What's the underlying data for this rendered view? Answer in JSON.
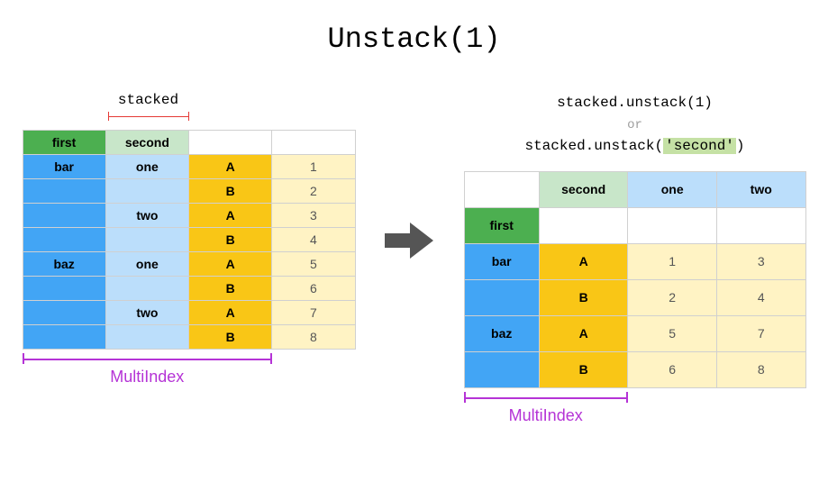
{
  "title": "Unstack(1)",
  "stacked_label": "stacked",
  "code_line1": "stacked.unstack(1)",
  "code_or": "or",
  "code_line2_prefix": "stacked.unstack(",
  "code_line2_hl": "'second'",
  "code_line2_suffix": ")",
  "multiindex_label": "MultiIndex",
  "colors": {
    "green_header": "#4caf50",
    "green_light": "#c8e6c9",
    "blue_header": "#42a5f5",
    "blue_light": "#bbdefb",
    "yellow_header": "#f9c616",
    "yellow_light": "#fff3c4",
    "border": "#d0d0d0",
    "arrow": "#555555",
    "red": "#e53935",
    "purple": "#b533d6",
    "grey_text": "#555555",
    "white": "#ffffff",
    "highlight": "#c5e1a5"
  },
  "left_table": {
    "col_widths_pct": [
      25,
      25,
      25,
      25
    ],
    "header": [
      {
        "text": "first",
        "bg": "green_header",
        "bold": true
      },
      {
        "text": "second",
        "bg": "green_light",
        "bold": true
      },
      {
        "text": "",
        "bg": "white",
        "bold": false
      },
      {
        "text": "",
        "bg": "white",
        "bold": false
      }
    ],
    "rows": [
      [
        {
          "text": "bar",
          "bg": "blue_header",
          "bold": true
        },
        {
          "text": "one",
          "bg": "blue_light",
          "bold": true
        },
        {
          "text": "A",
          "bg": "yellow_header",
          "bold": true
        },
        {
          "text": "1",
          "bg": "yellow_light",
          "bold": false
        }
      ],
      [
        {
          "text": "",
          "bg": "blue_header",
          "bold": false
        },
        {
          "text": "",
          "bg": "blue_light",
          "bold": false
        },
        {
          "text": "B",
          "bg": "yellow_header",
          "bold": true
        },
        {
          "text": "2",
          "bg": "yellow_light",
          "bold": false
        }
      ],
      [
        {
          "text": "",
          "bg": "blue_header",
          "bold": false
        },
        {
          "text": "two",
          "bg": "blue_light",
          "bold": true
        },
        {
          "text": "A",
          "bg": "yellow_header",
          "bold": true
        },
        {
          "text": "3",
          "bg": "yellow_light",
          "bold": false
        }
      ],
      [
        {
          "text": "",
          "bg": "blue_header",
          "bold": false
        },
        {
          "text": "",
          "bg": "blue_light",
          "bold": false
        },
        {
          "text": "B",
          "bg": "yellow_header",
          "bold": true
        },
        {
          "text": "4",
          "bg": "yellow_light",
          "bold": false
        }
      ],
      [
        {
          "text": "baz",
          "bg": "blue_header",
          "bold": true
        },
        {
          "text": "one",
          "bg": "blue_light",
          "bold": true
        },
        {
          "text": "A",
          "bg": "yellow_header",
          "bold": true
        },
        {
          "text": "5",
          "bg": "yellow_light",
          "bold": false
        }
      ],
      [
        {
          "text": "",
          "bg": "blue_header",
          "bold": false
        },
        {
          "text": "",
          "bg": "blue_light",
          "bold": false
        },
        {
          "text": "B",
          "bg": "yellow_header",
          "bold": true
        },
        {
          "text": "6",
          "bg": "yellow_light",
          "bold": false
        }
      ],
      [
        {
          "text": "",
          "bg": "blue_header",
          "bold": false
        },
        {
          "text": "two",
          "bg": "blue_light",
          "bold": true
        },
        {
          "text": "A",
          "bg": "yellow_header",
          "bold": true
        },
        {
          "text": "7",
          "bg": "yellow_light",
          "bold": false
        }
      ],
      [
        {
          "text": "",
          "bg": "blue_header",
          "bold": false
        },
        {
          "text": "",
          "bg": "blue_light",
          "bold": false
        },
        {
          "text": "B",
          "bg": "yellow_header",
          "bold": true
        },
        {
          "text": "8",
          "bg": "yellow_light",
          "bold": false
        }
      ]
    ],
    "mi_bracket_width_cols": 3
  },
  "right_table": {
    "col_widths_pct": [
      22,
      26,
      26,
      26
    ],
    "header1": [
      {
        "text": "",
        "bg": "white",
        "bold": false
      },
      {
        "text": "second",
        "bg": "green_light",
        "bold": true
      },
      {
        "text": "one",
        "bg": "blue_light",
        "bold": true
      },
      {
        "text": "two",
        "bg": "blue_light",
        "bold": true
      }
    ],
    "header2": [
      {
        "text": "first",
        "bg": "green_header",
        "bold": true
      },
      {
        "text": "",
        "bg": "white",
        "bold": false
      },
      {
        "text": "",
        "bg": "white",
        "bold": false
      },
      {
        "text": "",
        "bg": "white",
        "bold": false
      }
    ],
    "rows": [
      [
        {
          "text": "bar",
          "bg": "blue_header",
          "bold": true
        },
        {
          "text": "A",
          "bg": "yellow_header",
          "bold": true
        },
        {
          "text": "1",
          "bg": "yellow_light",
          "bold": false
        },
        {
          "text": "3",
          "bg": "yellow_light",
          "bold": false
        }
      ],
      [
        {
          "text": "",
          "bg": "blue_header",
          "bold": false
        },
        {
          "text": "B",
          "bg": "yellow_header",
          "bold": true
        },
        {
          "text": "2",
          "bg": "yellow_light",
          "bold": false
        },
        {
          "text": "4",
          "bg": "yellow_light",
          "bold": false
        }
      ],
      [
        {
          "text": "baz",
          "bg": "blue_header",
          "bold": true
        },
        {
          "text": "A",
          "bg": "yellow_header",
          "bold": true
        },
        {
          "text": "5",
          "bg": "yellow_light",
          "bold": false
        },
        {
          "text": "7",
          "bg": "yellow_light",
          "bold": false
        }
      ],
      [
        {
          "text": "",
          "bg": "blue_header",
          "bold": false
        },
        {
          "text": "B",
          "bg": "yellow_header",
          "bold": true
        },
        {
          "text": "6",
          "bg": "yellow_light",
          "bold": false
        },
        {
          "text": "8",
          "bg": "yellow_light",
          "bold": false
        }
      ]
    ],
    "mi_bracket_width_cols": 2
  }
}
